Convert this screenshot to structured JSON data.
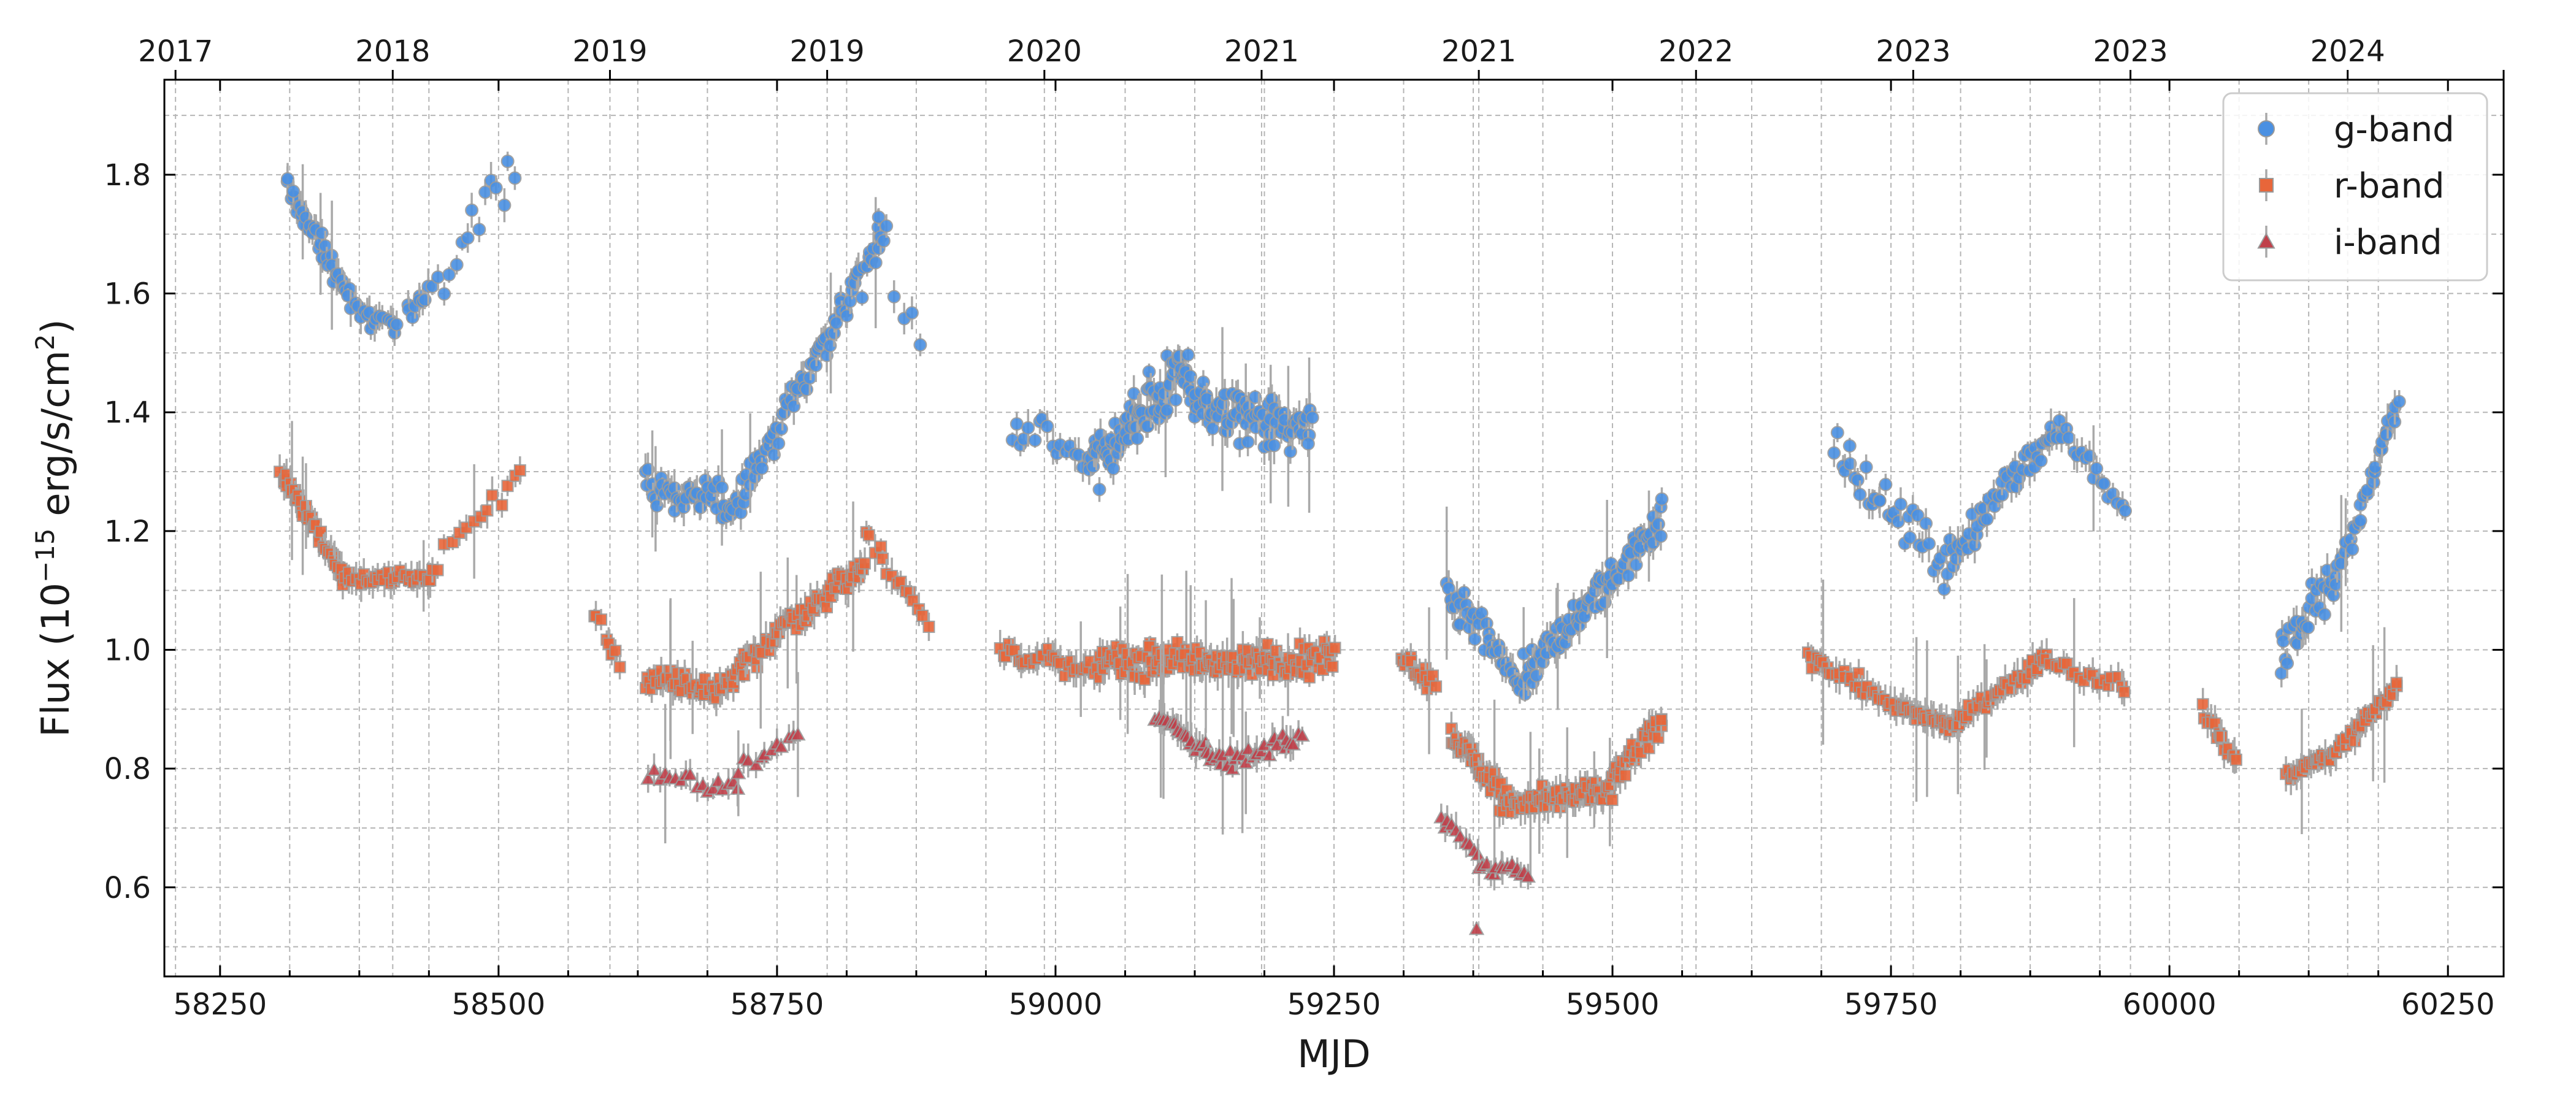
{
  "chart_data": {
    "type": "scatter",
    "xlabel": "MJD",
    "ylabel_prefix": "Flux (10",
    "ylabel_exp": "−15",
    "ylabel_mid": " erg/s/cm",
    "ylabel_sq": "2",
    "ylabel_suffix": ")",
    "xlim": [
      58200,
      60300
    ],
    "ylim": [
      0.45,
      1.96
    ],
    "grid": true,
    "legend_position": "top-right",
    "x_ticks": [
      58250,
      58500,
      58750,
      59000,
      59250,
      59500,
      59750,
      60000,
      60250
    ],
    "x_minor_ticks": [
      58312.5,
      58375,
      58437.5,
      58562.5,
      58625,
      58687.5,
      58812.5,
      58875,
      58937.5,
      59062.5,
      59125,
      59187.5,
      59312.5,
      59375,
      59437.5,
      59562.5,
      59625,
      59687.5,
      59812.5,
      59875,
      59937.5,
      60062.5,
      60125,
      60187.5
    ],
    "y_ticks": [
      0.6,
      0.8,
      1.0,
      1.2,
      1.4,
      1.6,
      1.8
    ],
    "y_tick_labels": [
      "0.6",
      "0.8",
      "1.0",
      "1.2",
      "1.4",
      "1.6",
      "1.8"
    ],
    "top_axis": {
      "ticks": [
        58210,
        58405,
        58600,
        58795,
        58990,
        59185,
        59380,
        59575,
        59770,
        59965,
        60160,
        60299
      ],
      "labels": [
        "2017",
        "2018",
        "2019",
        "2019",
        "2020",
        "2021",
        "2021",
        "2022",
        "2023",
        "2023",
        "2024"
      ],
      "tick_positions_mjd": [
        58210,
        58405,
        58600,
        58795,
        58990,
        59185,
        59380,
        59575,
        59770,
        59965,
        60160,
        60355
      ]
    },
    "series": [
      {
        "name": "g-band",
        "marker": "circle",
        "color": "#4a90e2",
        "segments": [
          {
            "x0": 58310,
            "x1": 58365,
            "y0": 1.78,
            "y1": 1.6,
            "n": 35,
            "scatter": 0.03
          },
          {
            "x0": 58365,
            "x1": 58410,
            "y0": 1.58,
            "y1": 1.54,
            "n": 18,
            "scatter": 0.03
          },
          {
            "x0": 58418,
            "x1": 58440,
            "y0": 1.56,
            "y1": 1.62,
            "n": 10,
            "scatter": 0.03
          },
          {
            "x0": 58445,
            "x1": 58515,
            "y0": 1.62,
            "y1": 1.82,
            "n": 14,
            "scatter": 0.06
          },
          {
            "x0": 58632,
            "x1": 58710,
            "y0": 1.28,
            "y1": 1.24,
            "n": 45,
            "scatter": 0.05
          },
          {
            "x0": 58710,
            "x1": 58845,
            "y0": 1.24,
            "y1": 1.7,
            "n": 80,
            "scatter": 0.05
          },
          {
            "x0": 58840,
            "x1": 58880,
            "y0": 1.72,
            "y1": 1.52,
            "n": 6,
            "scatter": 0.05
          },
          {
            "x0": 58960,
            "x1": 59030,
            "y0": 1.38,
            "y1": 1.32,
            "n": 18,
            "scatter": 0.05
          },
          {
            "x0": 59030,
            "x1": 59120,
            "y0": 1.3,
            "y1": 1.48,
            "n": 90,
            "scatter": 0.07
          },
          {
            "x0": 59120,
            "x1": 59230,
            "y0": 1.42,
            "y1": 1.36,
            "n": 90,
            "scatter": 0.06
          },
          {
            "x0": 59350,
            "x1": 59420,
            "y0": 1.1,
            "y1": 0.93,
            "n": 40,
            "scatter": 0.06
          },
          {
            "x0": 59420,
            "x1": 59545,
            "y0": 0.95,
            "y1": 1.22,
            "n": 90,
            "scatter": 0.05
          },
          {
            "x0": 59700,
            "x1": 59800,
            "y0": 1.33,
            "y1": 1.14,
            "n": 35,
            "scatter": 0.06
          },
          {
            "x0": 59800,
            "x1": 59900,
            "y0": 1.15,
            "y1": 1.38,
            "n": 50,
            "scatter": 0.05
          },
          {
            "x0": 59900,
            "x1": 59960,
            "y0": 1.38,
            "y1": 1.24,
            "n": 18,
            "scatter": 0.04
          },
          {
            "x0": 60100,
            "x1": 60150,
            "y0": 1.0,
            "y1": 1.12,
            "n": 30,
            "scatter": 0.06
          },
          {
            "x0": 60150,
            "x1": 60205,
            "y0": 1.12,
            "y1": 1.42,
            "n": 30,
            "scatter": 0.04
          }
        ]
      },
      {
        "name": "r-band",
        "marker": "square",
        "color": "#e8663a",
        "segments": [
          {
            "x0": 58305,
            "x1": 58360,
            "y0": 1.3,
            "y1": 1.13,
            "n": 40,
            "scatter": 0.02
          },
          {
            "x0": 58360,
            "x1": 58440,
            "y0": 1.12,
            "y1": 1.12,
            "n": 35,
            "scatter": 0.02
          },
          {
            "x0": 58440,
            "x1": 58520,
            "y0": 1.14,
            "y1": 1.3,
            "n": 14,
            "scatter": 0.03
          },
          {
            "x0": 58585,
            "x1": 58610,
            "y0": 1.06,
            "y1": 0.97,
            "n": 8,
            "scatter": 0.02
          },
          {
            "x0": 58632,
            "x1": 58700,
            "y0": 0.95,
            "y1": 0.93,
            "n": 40,
            "scatter": 0.03
          },
          {
            "x0": 58700,
            "x1": 58830,
            "y0": 0.94,
            "y1": 1.15,
            "n": 80,
            "scatter": 0.03
          },
          {
            "x0": 58830,
            "x1": 58885,
            "y0": 1.2,
            "y1": 1.04,
            "n": 15,
            "scatter": 0.03
          },
          {
            "x0": 58950,
            "x1": 59040,
            "y0": 1.0,
            "y1": 0.96,
            "n": 35,
            "scatter": 0.025
          },
          {
            "x0": 59040,
            "x1": 59250,
            "y0": 0.98,
            "y1": 0.98,
            "n": 150,
            "scatter": 0.04
          },
          {
            "x0": 59310,
            "x1": 59340,
            "y0": 0.99,
            "y1": 0.94,
            "n": 18,
            "scatter": 0.03
          },
          {
            "x0": 59355,
            "x1": 59400,
            "y0": 0.86,
            "y1": 0.76,
            "n": 40,
            "scatter": 0.03
          },
          {
            "x0": 59400,
            "x1": 59500,
            "y0": 0.74,
            "y1": 0.76,
            "n": 80,
            "scatter": 0.03
          },
          {
            "x0": 59500,
            "x1": 59545,
            "y0": 0.78,
            "y1": 0.88,
            "n": 35,
            "scatter": 0.03
          },
          {
            "x0": 59675,
            "x1": 59760,
            "y0": 0.99,
            "y1": 0.9,
            "n": 35,
            "scatter": 0.02
          },
          {
            "x0": 59760,
            "x1": 59810,
            "y0": 0.9,
            "y1": 0.87,
            "n": 35,
            "scatter": 0.02
          },
          {
            "x0": 59810,
            "x1": 59890,
            "y0": 0.88,
            "y1": 0.99,
            "n": 40,
            "scatter": 0.02
          },
          {
            "x0": 59890,
            "x1": 59960,
            "y0": 0.98,
            "y1": 0.94,
            "n": 20,
            "scatter": 0.02
          },
          {
            "x0": 60030,
            "x1": 60060,
            "y0": 0.9,
            "y1": 0.81,
            "n": 16,
            "scatter": 0.02
          },
          {
            "x0": 60105,
            "x1": 60150,
            "y0": 0.79,
            "y1": 0.82,
            "n": 30,
            "scatter": 0.02
          },
          {
            "x0": 60150,
            "x1": 60205,
            "y0": 0.83,
            "y1": 0.94,
            "n": 30,
            "scatter": 0.02
          }
        ]
      },
      {
        "name": "i-band",
        "marker": "triangle",
        "color": "#c0404a",
        "segments": [
          {
            "x0": 58635,
            "x1": 58715,
            "y0": 0.79,
            "y1": 0.77,
            "n": 18,
            "scatter": 0.02
          },
          {
            "x0": 58715,
            "x1": 58770,
            "y0": 0.8,
            "y1": 0.86,
            "n": 12,
            "scatter": 0.015
          },
          {
            "x0": 59090,
            "x1": 59150,
            "y0": 0.89,
            "y1": 0.81,
            "n": 30,
            "scatter": 0.02
          },
          {
            "x0": 59150,
            "x1": 59220,
            "y0": 0.81,
            "y1": 0.85,
            "n": 25,
            "scatter": 0.03
          },
          {
            "x0": 59345,
            "x1": 59380,
            "y0": 0.72,
            "y1": 0.66,
            "n": 10,
            "scatter": 0.02
          },
          {
            "x0": 59380,
            "x1": 59425,
            "y0": 0.64,
            "y1": 0.62,
            "n": 15,
            "scatter": 0.02
          }
        ],
        "points": [
          [
            59378,
            0.53
          ]
        ]
      }
    ]
  }
}
